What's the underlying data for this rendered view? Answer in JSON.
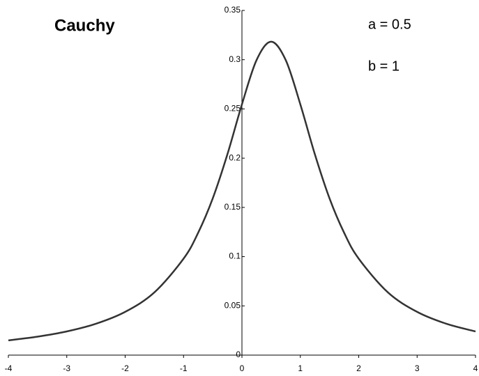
{
  "chart_data": {
    "type": "line",
    "title": "Cauchy",
    "annotations": [
      "a = 0.5",
      "b = 1"
    ],
    "x": [
      -4,
      -3.5,
      -3,
      -2.5,
      -2,
      -1.5,
      -1,
      -0.75,
      -0.5,
      -0.25,
      0,
      0.25,
      0.5,
      0.75,
      1,
      1.25,
      1.5,
      1.75,
      2,
      2.5,
      3,
      3.5,
      4
    ],
    "series": [
      {
        "color": "#333333",
        "values": [
          0.01498,
          0.01872,
          0.02402,
          0.03183,
          0.0439,
          0.06366,
          0.09794,
          0.12422,
          0.15915,
          0.20372,
          0.25465,
          0.29959,
          0.31831,
          0.29959,
          0.25465,
          0.20372,
          0.15915,
          0.12422,
          0.09794,
          0.06366,
          0.0439,
          0.03183,
          0.02402
        ]
      }
    ],
    "xlim": [
      -4,
      4
    ],
    "xticks": [
      -4,
      -3,
      -2,
      -1,
      0,
      1,
      2,
      3,
      4
    ],
    "ylim": [
      0,
      0.35
    ],
    "yticks": [
      0,
      0.05,
      0.1,
      0.15,
      0.2,
      0.25,
      0.3,
      0.35
    ],
    "grid": false
  }
}
